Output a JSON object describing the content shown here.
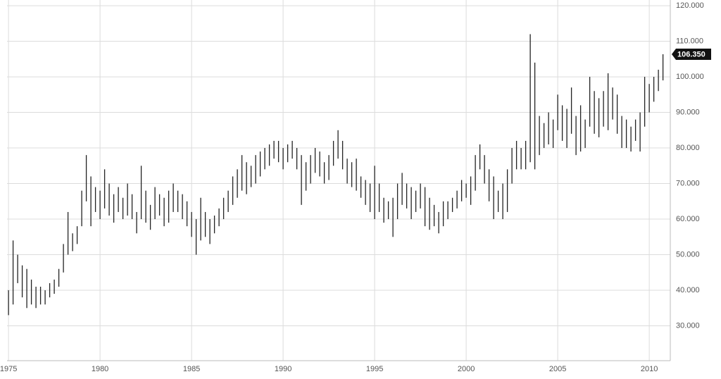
{
  "chart_data": {
    "type": "ohlc",
    "xlim": [
      1974.92,
      2011.15
    ],
    "xticks": [
      {
        "value": 1975,
        "label": "1975"
      },
      1980,
      1985,
      1990,
      1995,
      2000,
      2005,
      2010
    ],
    "ylim": [
      20.2,
      121.6
    ],
    "yticks": [
      {
        "value": 30,
        "label": "30.000"
      },
      {
        "value": 40,
        "label": "40.000"
      },
      {
        "value": 50,
        "label": "50.000"
      },
      {
        "value": 60,
        "label": "60.000"
      },
      {
        "value": 70,
        "label": "70.000"
      },
      {
        "value": 80,
        "label": "80.000"
      },
      {
        "value": 90,
        "label": "90.000"
      },
      {
        "value": 100,
        "label": "100.000"
      },
      {
        "value": 110,
        "label": "110.000"
      },
      {
        "value": 120,
        "label": "120.000"
      }
    ],
    "grid": true,
    "color": "#222222",
    "last": {
      "value": 106.35,
      "label": "106.350"
    },
    "x": [
      1975,
      1975.25,
      1975.5,
      1975.75,
      1976,
      1976.25,
      1976.5,
      1976.75,
      1977,
      1977.25,
      1977.5,
      1977.75,
      1978,
      1978.25,
      1978.5,
      1978.75,
      1979,
      1979.25,
      1979.5,
      1979.75,
      1980,
      1980.25,
      1980.5,
      1980.75,
      1981,
      1981.25,
      1981.5,
      1981.75,
      1982,
      1982.25,
      1982.5,
      1982.75,
      1983,
      1983.25,
      1983.5,
      1983.75,
      1984,
      1984.25,
      1984.5,
      1984.75,
      1985,
      1985.25,
      1985.5,
      1985.75,
      1986,
      1986.25,
      1986.5,
      1986.75,
      1987,
      1987.25,
      1987.5,
      1987.75,
      1988,
      1988.25,
      1988.5,
      1988.75,
      1989,
      1989.25,
      1989.5,
      1989.75,
      1990,
      1990.25,
      1990.5,
      1990.75,
      1991,
      1991.25,
      1991.5,
      1991.75,
      1992,
      1992.25,
      1992.5,
      1992.75,
      1993,
      1993.25,
      1993.5,
      1993.75,
      1994,
      1994.25,
      1994.5,
      1994.75,
      1995,
      1995.25,
      1995.5,
      1995.75,
      1996,
      1996.25,
      1996.5,
      1996.75,
      1997,
      1997.25,
      1997.5,
      1997.75,
      1998,
      1998.25,
      1998.5,
      1998.75,
      1999,
      1999.25,
      1999.5,
      1999.75,
      2000,
      2000.25,
      2000.5,
      2000.75,
      2001,
      2001.25,
      2001.5,
      2001.75,
      2002,
      2002.25,
      2002.5,
      2002.75,
      2003,
      2003.25,
      2003.5,
      2003.75,
      2004,
      2004.25,
      2004.5,
      2004.75,
      2005,
      2005.25,
      2005.5,
      2005.75,
      2006,
      2006.25,
      2006.5,
      2006.75,
      2007,
      2007.25,
      2007.5,
      2007.75,
      2008,
      2008.25,
      2008.5,
      2008.75,
      2009,
      2009.25,
      2009.5,
      2009.75,
      2010,
      2010.25,
      2010.5,
      2010.75
    ],
    "high": [
      40,
      54,
      50,
      47,
      46,
      43,
      41,
      41,
      40,
      42,
      43,
      46,
      53,
      62,
      56,
      58,
      68,
      78,
      72,
      69,
      68,
      74,
      70,
      67,
      69,
      66,
      70,
      67,
      62,
      75,
      68,
      64,
      69,
      67,
      66,
      68,
      70,
      68,
      67,
      65,
      62,
      60,
      66,
      62,
      60,
      61,
      63,
      66,
      68,
      72,
      74,
      78,
      76,
      75,
      78,
      79,
      80,
      81,
      82,
      82,
      80,
      81,
      82,
      80,
      78,
      76,
      78,
      80,
      79,
      76,
      78,
      82,
      85,
      82,
      77,
      76,
      77,
      72,
      71,
      70,
      75,
      70,
      66,
      65,
      66,
      70,
      73,
      70,
      69,
      68,
      70,
      69,
      66,
      64,
      62,
      65,
      65,
      66,
      68,
      71,
      70,
      72,
      78,
      81,
      78,
      74,
      72,
      68,
      70,
      74,
      80,
      82,
      80,
      82,
      112,
      104,
      89,
      87,
      90,
      88,
      95,
      92,
      91,
      97,
      89,
      92,
      88,
      100,
      96,
      94,
      96,
      101,
      97,
      95,
      89,
      88,
      86,
      88,
      90,
      100,
      98,
      100,
      102,
      106.35
    ],
    "low": [
      33,
      36,
      42,
      38,
      35,
      36,
      35,
      36,
      36,
      38,
      39,
      41,
      45,
      50,
      51,
      53,
      58,
      65,
      58,
      62,
      60,
      63,
      61,
      59,
      62,
      60,
      61,
      60,
      56,
      60,
      59,
      57,
      60,
      61,
      58,
      59,
      62,
      62,
      60,
      58,
      55,
      50,
      54,
      55,
      53,
      56,
      58,
      60,
      62,
      64,
      66,
      68,
      67,
      69,
      70,
      72,
      74,
      75,
      77,
      76,
      74,
      76,
      77,
      74,
      64,
      68,
      70,
      73,
      72,
      70,
      71,
      75,
      77,
      74,
      70,
      69,
      68,
      66,
      64,
      62,
      60,
      62,
      59,
      60,
      55,
      60,
      64,
      63,
      60,
      62,
      63,
      58,
      57,
      58,
      56,
      58,
      60,
      62,
      63,
      65,
      66,
      64,
      68,
      74,
      70,
      65,
      60,
      62,
      60,
      62,
      70,
      74,
      74,
      74,
      76,
      74,
      78,
      80,
      81,
      80,
      85,
      82,
      80,
      84,
      78,
      79,
      80,
      86,
      84,
      83,
      86,
      85,
      88,
      84,
      80,
      80,
      79,
      82,
      79,
      86,
      90,
      93,
      96,
      99
    ]
  }
}
